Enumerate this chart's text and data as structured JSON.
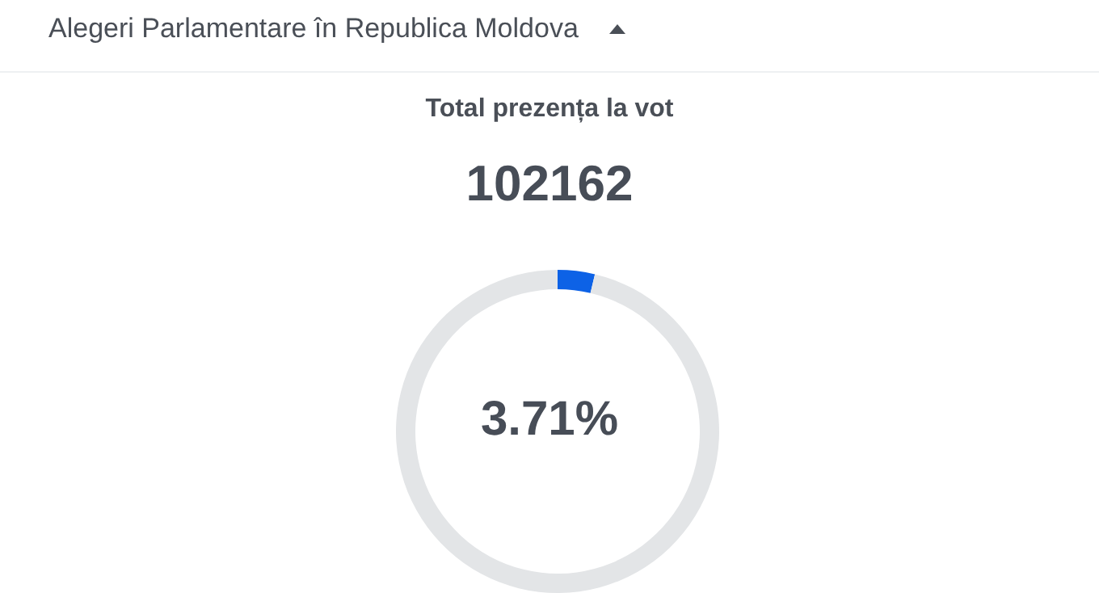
{
  "chart_data": {
    "type": "donut",
    "title": "Alegeri Parlamentare în Republica Moldova",
    "subtitle": "Total prezența la vot",
    "annotations": [
      "102162",
      "3.71%"
    ],
    "categories": [
      null,
      null
    ],
    "values": [
      3.71,
      96.29
    ],
    "colors": [
      "#0d62e6",
      "#e3e5e7"
    ],
    "legend": false
  }
}
